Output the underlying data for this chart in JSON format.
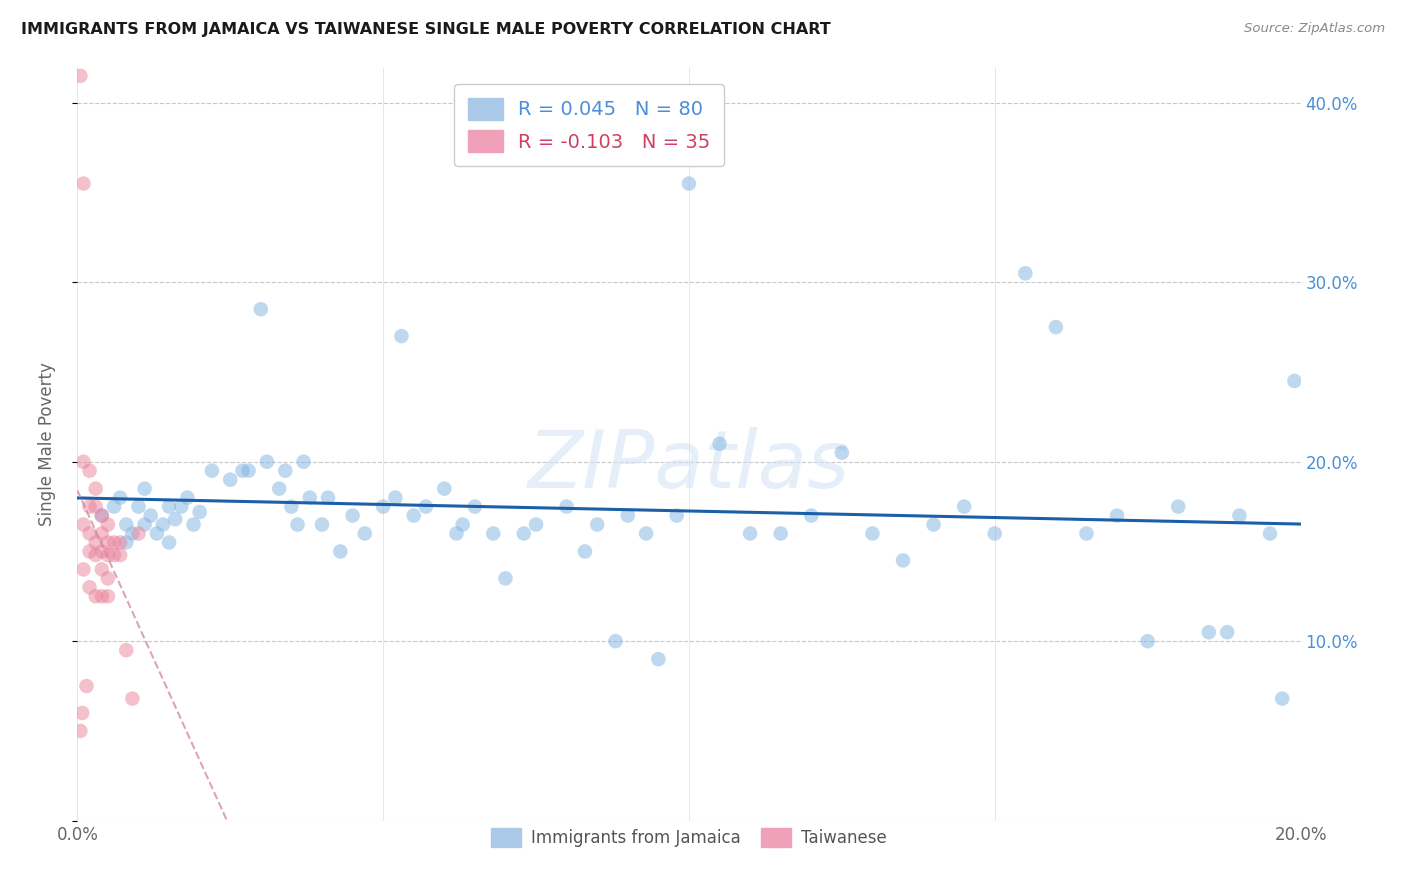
{
  "title": "IMMIGRANTS FROM JAMAICA VS TAIWANESE SINGLE MALE POVERTY CORRELATION CHART",
  "source": "Source: ZipAtlas.com",
  "ylabel": "Single Male Poverty",
  "watermark": "ZIPatlas",
  "xlim": [
    0.0,
    0.2
  ],
  "ylim": [
    0.0,
    0.42
  ],
  "xticks": [
    0.0,
    0.05,
    0.1,
    0.15,
    0.2
  ],
  "yticks": [
    0.1,
    0.2,
    0.3,
    0.4
  ],
  "xtick_labels": [
    "0.0%",
    "",
    "",
    "",
    "20.0%"
  ],
  "ytick_labels_right": [
    "10.0%",
    "20.0%",
    "30.0%",
    "40.0%"
  ],
  "series1_label": "R = 0.045   N = 80",
  "series2_label": "R = -0.103   N = 35",
  "series1_color": "#7fb3e0",
  "series2_color": "#e8829a",
  "blue_line_color": "#1a5fa8",
  "pink_line_color": "#d08898",
  "background_color": "#ffffff",
  "grid_color": "#c8c8c8",
  "title_color": "#1a1a1a",
  "right_axis_color": "#4a90d9",
  "legend1_color1": "#4a90d9",
  "legend1_color2": "#d04060",
  "blue_scatter_x": [
    0.004,
    0.006,
    0.007,
    0.008,
    0.008,
    0.009,
    0.01,
    0.011,
    0.011,
    0.012,
    0.013,
    0.014,
    0.015,
    0.015,
    0.016,
    0.017,
    0.018,
    0.019,
    0.02,
    0.022,
    0.025,
    0.027,
    0.028,
    0.03,
    0.031,
    0.033,
    0.034,
    0.035,
    0.036,
    0.037,
    0.038,
    0.04,
    0.041,
    0.043,
    0.045,
    0.047,
    0.05,
    0.052,
    0.053,
    0.055,
    0.057,
    0.06,
    0.062,
    0.063,
    0.065,
    0.068,
    0.07,
    0.073,
    0.075,
    0.08,
    0.083,
    0.085,
    0.088,
    0.09,
    0.093,
    0.095,
    0.098,
    0.1,
    0.105,
    0.11,
    0.115,
    0.12,
    0.125,
    0.13,
    0.135,
    0.14,
    0.145,
    0.15,
    0.155,
    0.16,
    0.165,
    0.17,
    0.175,
    0.18,
    0.185,
    0.188,
    0.19,
    0.195,
    0.197,
    0.199
  ],
  "blue_scatter_y": [
    0.17,
    0.175,
    0.18,
    0.165,
    0.155,
    0.16,
    0.175,
    0.185,
    0.165,
    0.17,
    0.16,
    0.165,
    0.175,
    0.155,
    0.168,
    0.175,
    0.18,
    0.165,
    0.172,
    0.195,
    0.19,
    0.195,
    0.195,
    0.285,
    0.2,
    0.185,
    0.195,
    0.175,
    0.165,
    0.2,
    0.18,
    0.165,
    0.18,
    0.15,
    0.17,
    0.16,
    0.175,
    0.18,
    0.27,
    0.17,
    0.175,
    0.185,
    0.16,
    0.165,
    0.175,
    0.16,
    0.135,
    0.16,
    0.165,
    0.175,
    0.15,
    0.165,
    0.1,
    0.17,
    0.16,
    0.09,
    0.17,
    0.355,
    0.21,
    0.16,
    0.16,
    0.17,
    0.205,
    0.16,
    0.145,
    0.165,
    0.175,
    0.16,
    0.305,
    0.275,
    0.16,
    0.17,
    0.1,
    0.175,
    0.105,
    0.105,
    0.17,
    0.16,
    0.068,
    0.245
  ],
  "pink_scatter_x": [
    0.0005,
    0.0005,
    0.0008,
    0.001,
    0.001,
    0.001,
    0.001,
    0.0015,
    0.002,
    0.002,
    0.002,
    0.002,
    0.002,
    0.003,
    0.003,
    0.003,
    0.003,
    0.003,
    0.004,
    0.004,
    0.004,
    0.004,
    0.004,
    0.005,
    0.005,
    0.005,
    0.005,
    0.005,
    0.006,
    0.006,
    0.007,
    0.007,
    0.008,
    0.009,
    0.01
  ],
  "pink_scatter_y": [
    0.415,
    0.05,
    0.06,
    0.355,
    0.2,
    0.165,
    0.14,
    0.075,
    0.195,
    0.175,
    0.16,
    0.15,
    0.13,
    0.185,
    0.175,
    0.155,
    0.148,
    0.125,
    0.17,
    0.16,
    0.15,
    0.14,
    0.125,
    0.165,
    0.155,
    0.148,
    0.135,
    0.125,
    0.155,
    0.148,
    0.155,
    0.148,
    0.095,
    0.068,
    0.16
  ]
}
